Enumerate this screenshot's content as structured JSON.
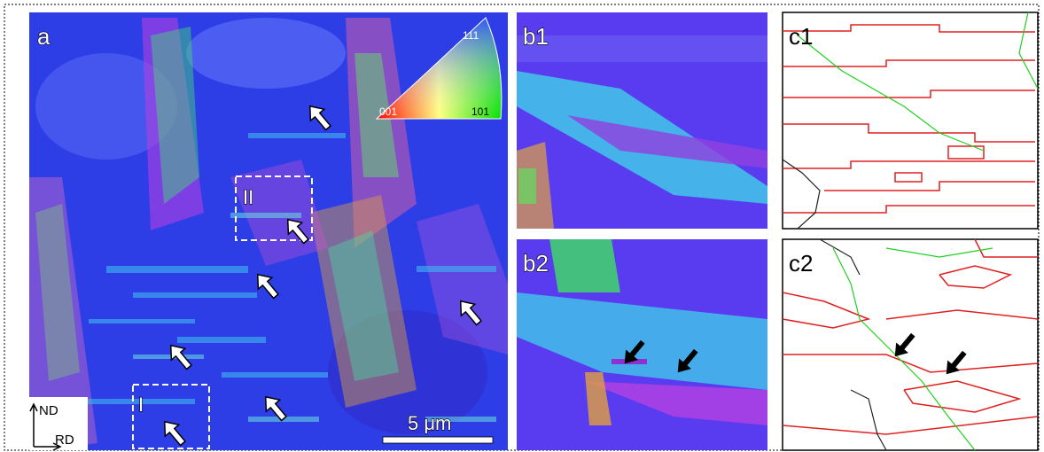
{
  "panels": {
    "a": {
      "label": "a",
      "ipf": {
        "top": "111",
        "left": "001",
        "right": "101"
      },
      "boxes": [
        "II",
        "I"
      ],
      "axes": {
        "nd": "ND",
        "rd": "RD"
      },
      "scale_bar": "5 μm"
    },
    "b1": {
      "label": "b1"
    },
    "b2": {
      "label": "b2"
    },
    "c1": {
      "label": "c1"
    },
    "c2": {
      "label": "c2"
    }
  }
}
